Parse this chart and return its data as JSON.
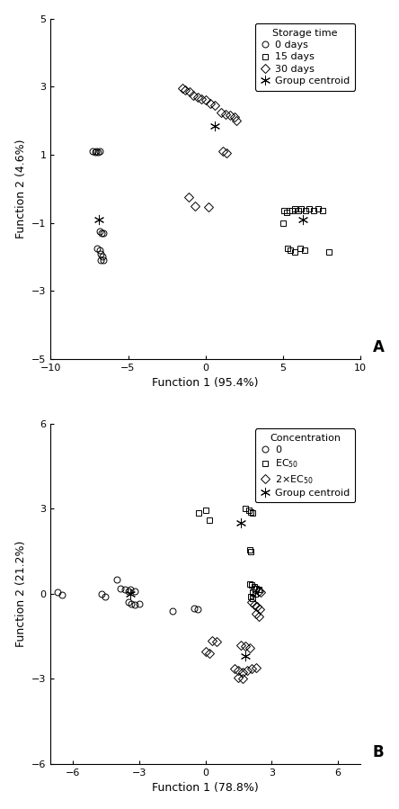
{
  "plot_A": {
    "xlabel": "Function 1 (95.4%)",
    "ylabel": "Function 2 (4.6%)",
    "xlim": [
      -10,
      10
    ],
    "ylim": [
      -5,
      5
    ],
    "xticks": [
      -10,
      -5,
      0,
      5,
      10
    ],
    "yticks": [
      -5,
      -3,
      -1,
      1,
      3,
      5
    ],
    "legend_title": "Storage time",
    "legend_labels": [
      "0 days",
      "15 days",
      "30 days",
      "Group centroid"
    ],
    "circles": [
      [
        -7.3,
        1.1
      ],
      [
        -7.15,
        1.07
      ],
      [
        -7.05,
        1.1
      ],
      [
        -6.95,
        1.07
      ],
      [
        -6.85,
        1.1
      ],
      [
        -6.85,
        -1.25
      ],
      [
        -6.7,
        -1.3
      ],
      [
        -6.6,
        -1.3
      ],
      [
        -7.0,
        -1.75
      ],
      [
        -6.85,
        -1.8
      ],
      [
        -6.75,
        -1.9
      ],
      [
        -6.65,
        -2.0
      ],
      [
        -6.75,
        -2.1
      ],
      [
        -6.6,
        -2.1
      ]
    ],
    "squares": [
      [
        5.0,
        -1.0
      ],
      [
        5.1,
        -0.65
      ],
      [
        5.25,
        -0.7
      ],
      [
        5.4,
        -0.65
      ],
      [
        5.6,
        -0.65
      ],
      [
        5.75,
        -0.6
      ],
      [
        6.0,
        -0.65
      ],
      [
        6.2,
        -0.6
      ],
      [
        6.5,
        -0.65
      ],
      [
        6.7,
        -0.6
      ],
      [
        7.0,
        -0.65
      ],
      [
        7.3,
        -0.6
      ],
      [
        7.6,
        -0.65
      ],
      [
        5.3,
        -1.75
      ],
      [
        5.5,
        -1.8
      ],
      [
        5.8,
        -1.85
      ],
      [
        6.1,
        -1.75
      ],
      [
        6.4,
        -1.8
      ],
      [
        8.0,
        -1.85
      ]
    ],
    "diamonds": [
      [
        -1.5,
        2.95
      ],
      [
        -1.3,
        2.9
      ],
      [
        -1.0,
        2.85
      ],
      [
        -0.8,
        2.75
      ],
      [
        -0.5,
        2.7
      ],
      [
        -0.25,
        2.65
      ],
      [
        0.0,
        2.6
      ],
      [
        0.3,
        2.5
      ],
      [
        0.6,
        2.45
      ],
      [
        1.0,
        2.25
      ],
      [
        1.3,
        2.2
      ],
      [
        1.6,
        2.15
      ],
      [
        1.9,
        2.1
      ],
      [
        2.0,
        2.0
      ],
      [
        1.1,
        1.1
      ],
      [
        1.35,
        1.05
      ],
      [
        -1.1,
        -0.25
      ],
      [
        -0.7,
        -0.5
      ],
      [
        0.2,
        -0.55
      ]
    ],
    "centroids_circle": [
      [
        -6.9,
        -0.9
      ]
    ],
    "centroids_square": [
      [
        6.3,
        -0.9
      ]
    ],
    "centroids_diamond": [
      [
        0.6,
        1.85
      ]
    ]
  },
  "plot_B": {
    "xlabel": "Function 1 (78.8%)",
    "ylabel": "Function 2 (21.2%)",
    "xlim": [
      -7,
      7
    ],
    "ylim": [
      -6,
      6
    ],
    "xticks": [
      -6,
      -3,
      0,
      3,
      6
    ],
    "yticks": [
      -6,
      -3,
      0,
      3,
      6
    ],
    "legend_title": "Concentration",
    "legend_labels": [
      "0",
      "EC$_{50}$",
      "2×EC$_{50}$",
      "Group centroid"
    ],
    "circles": [
      [
        -6.7,
        0.05
      ],
      [
        -6.5,
        -0.05
      ],
      [
        -4.7,
        0.0
      ],
      [
        -4.55,
        -0.1
      ],
      [
        -4.0,
        0.5
      ],
      [
        -3.85,
        0.2
      ],
      [
        -3.65,
        0.15
      ],
      [
        -3.5,
        0.1
      ],
      [
        -3.5,
        -0.3
      ],
      [
        -3.35,
        -0.35
      ],
      [
        -3.2,
        -0.4
      ],
      [
        -3.0,
        -0.35
      ],
      [
        -3.4,
        0.15
      ],
      [
        -3.2,
        0.1
      ],
      [
        -1.5,
        -0.6
      ],
      [
        -0.5,
        -0.5
      ],
      [
        -0.35,
        -0.55
      ]
    ],
    "squares": [
      [
        -0.3,
        2.85
      ],
      [
        0.0,
        2.95
      ],
      [
        0.2,
        2.6
      ],
      [
        1.8,
        3.0
      ],
      [
        1.95,
        2.95
      ],
      [
        2.05,
        2.9
      ],
      [
        2.15,
        2.85
      ],
      [
        2.0,
        1.55
      ],
      [
        2.05,
        1.5
      ],
      [
        2.0,
        0.35
      ],
      [
        2.1,
        0.3
      ],
      [
        2.2,
        0.25
      ],
      [
        2.3,
        0.2
      ],
      [
        2.4,
        0.15
      ],
      [
        2.15,
        0.05
      ],
      [
        2.25,
        0.0
      ],
      [
        2.05,
        -0.1
      ],
      [
        2.15,
        -0.15
      ]
    ],
    "diamonds": [
      [
        2.25,
        0.15
      ],
      [
        2.4,
        0.1
      ],
      [
        2.5,
        0.05
      ],
      [
        2.1,
        -0.3
      ],
      [
        2.2,
        -0.4
      ],
      [
        2.35,
        -0.45
      ],
      [
        2.45,
        -0.55
      ],
      [
        2.3,
        -0.7
      ],
      [
        2.4,
        -0.8
      ],
      [
        1.6,
        -1.8
      ],
      [
        1.8,
        -1.85
      ],
      [
        2.0,
        -1.9
      ],
      [
        0.3,
        -1.65
      ],
      [
        0.5,
        -1.7
      ],
      [
        1.3,
        -2.65
      ],
      [
        1.5,
        -2.7
      ],
      [
        1.7,
        -2.75
      ],
      [
        1.9,
        -2.7
      ],
      [
        2.1,
        -2.65
      ],
      [
        2.3,
        -2.6
      ],
      [
        1.5,
        -2.95
      ],
      [
        1.7,
        -3.0
      ],
      [
        0.0,
        -2.05
      ],
      [
        0.2,
        -2.1
      ]
    ],
    "centroids_circle": [
      [
        -3.4,
        0.0
      ]
    ],
    "centroids_square": [
      [
        1.6,
        2.5
      ]
    ],
    "centroids_diamond": [
      [
        1.8,
        -2.2
      ]
    ]
  },
  "marker_size": 5,
  "marker_edge_width": 0.7,
  "font_size": 8,
  "label_font_size": 9,
  "bg_color": "#ffffff",
  "edge_color": "#000000"
}
